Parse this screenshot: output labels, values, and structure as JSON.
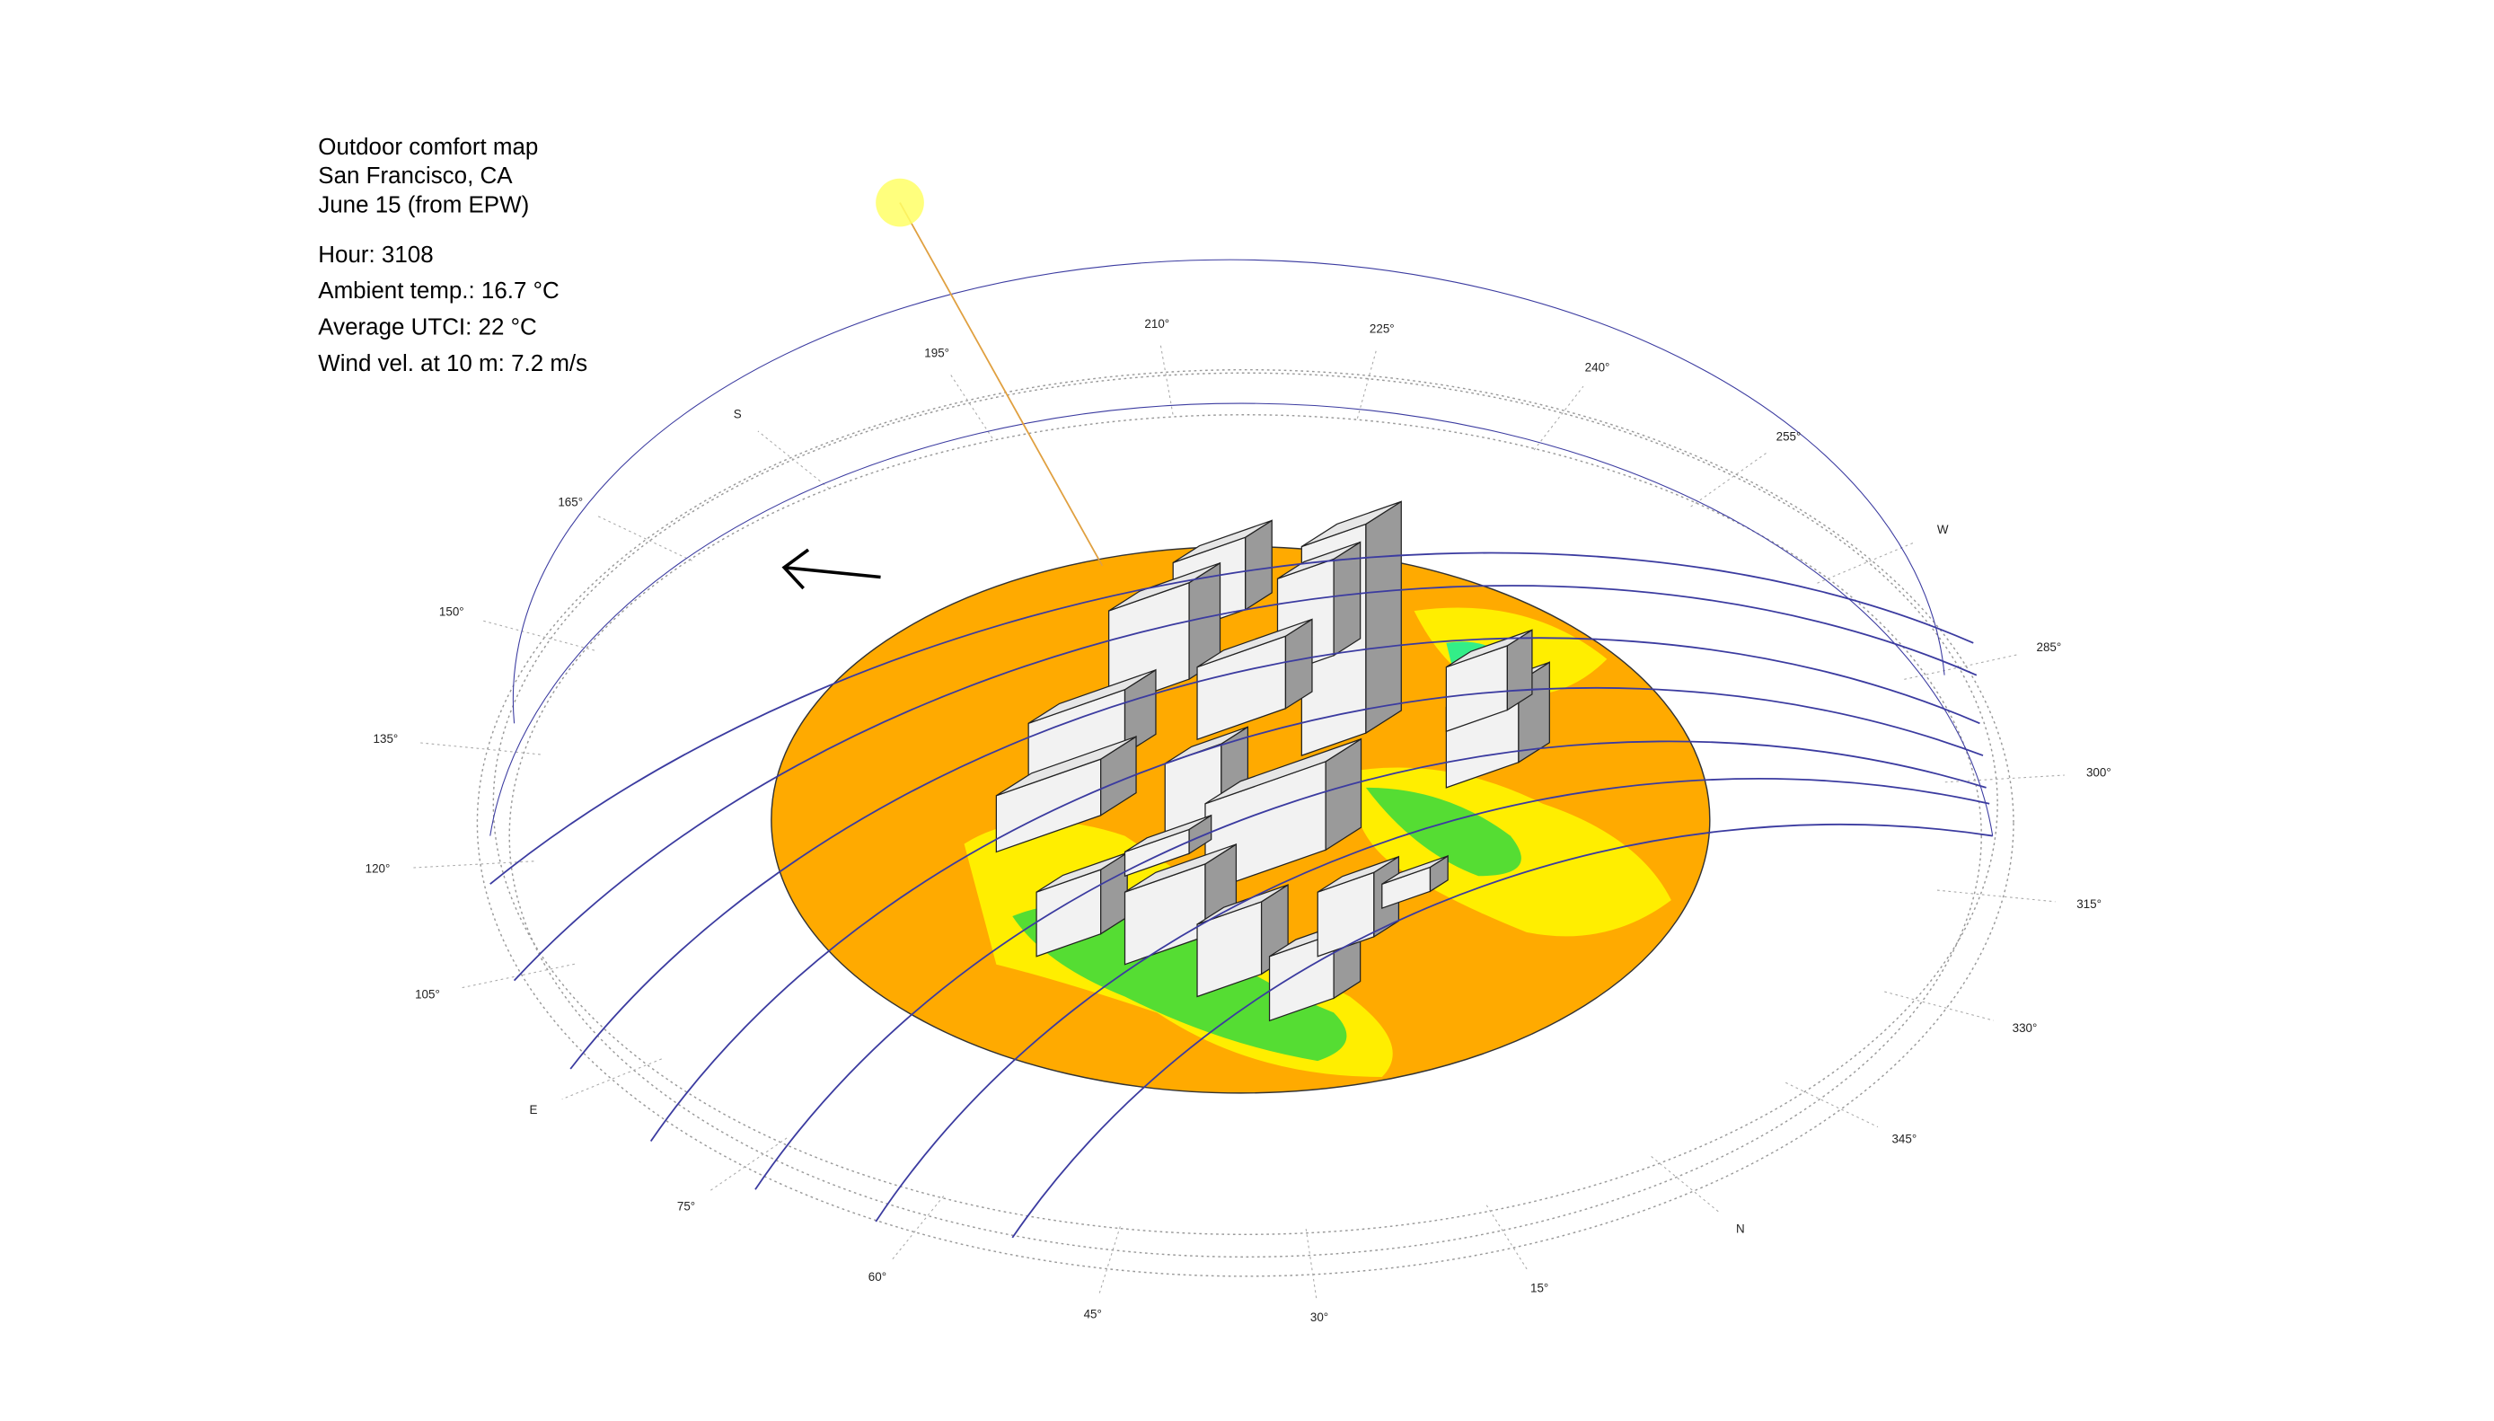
{
  "header": {
    "lines": [
      "Outdoor comfort map",
      "San Francisco, CA",
      "June 15 (from EPW)"
    ]
  },
  "stats": [
    "Hour:  3108",
    "Ambient temp.: 16.7 °C",
    "Average UTCI: 22 °C",
    "Wind vel. at 10 m: 7.2 m/s"
  ],
  "compass": {
    "labels": [
      "195°",
      "210°",
      "225°",
      "240°",
      "255°",
      "W",
      "285°",
      "300°",
      "315°",
      "330°",
      "345°",
      "N",
      "15°",
      "30°",
      "45°",
      "60°",
      "75°",
      "E",
      "105°",
      "120°",
      "135°",
      "150°",
      "165°",
      "S"
    ]
  }
}
